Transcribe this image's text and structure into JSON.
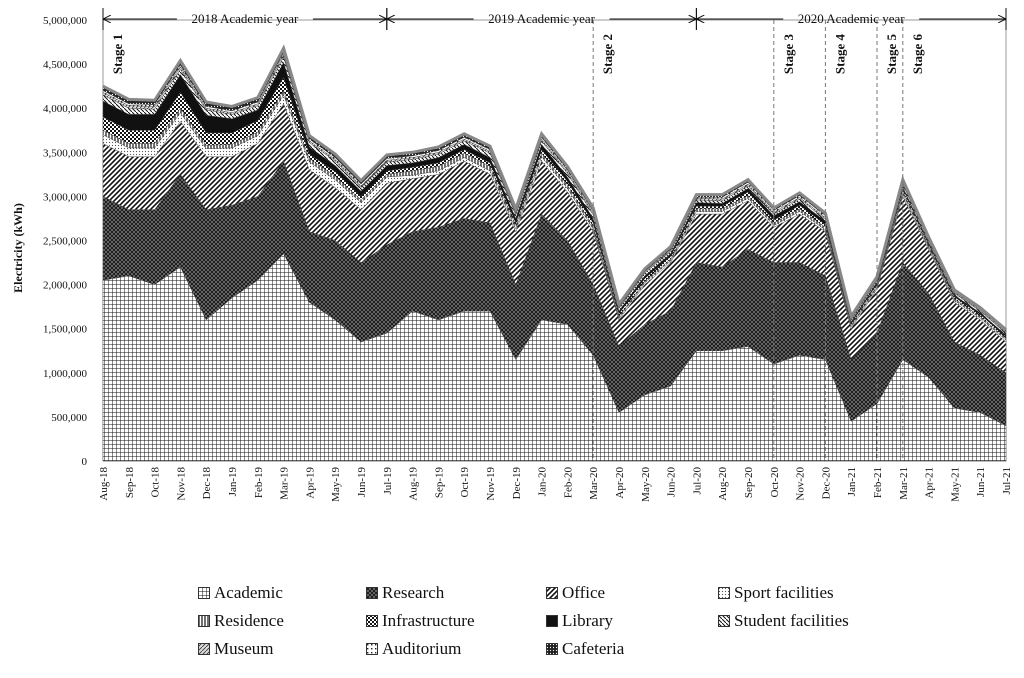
{
  "chart_data": {
    "type": "area",
    "stacked": true,
    "ylabel": "Electricity (kWh)",
    "ylim": [
      0,
      5000000
    ],
    "yticks": [
      "0",
      "500,000",
      "1,000,000",
      "1,500,000",
      "2,000,000",
      "2,500,000",
      "3,000,000",
      "3,500,000",
      "4,000,000",
      "4,500,000",
      "5,000,000"
    ],
    "categories": [
      "Aug-18",
      "Sep-18",
      "Oct-18",
      "Nov-18",
      "Dec-18",
      "Jan-19",
      "Feb-19",
      "Mar-19",
      "Apr-19",
      "May-19",
      "Jun-19",
      "Jul-19",
      "Aug-19",
      "Sep-19",
      "Oct-19",
      "Nov-19",
      "Dec-19",
      "Jan-20",
      "Feb-20",
      "Mar-20",
      "Apr-20",
      "May-20",
      "Jun-20",
      "Jul-20",
      "Aug-20",
      "Sep-20",
      "Oct-20",
      "Nov-20",
      "Dec-20",
      "Jan-21",
      "Feb-21",
      "Mar-21",
      "Apr-21",
      "May-21",
      "Jun-21",
      "Jul-21"
    ],
    "series": [
      {
        "name": "Academic",
        "pattern": "grid",
        "values": [
          2050000,
          2100000,
          2000000,
          2200000,
          1600000,
          1850000,
          2050000,
          2350000,
          1800000,
          1600000,
          1350000,
          1450000,
          1700000,
          1600000,
          1700000,
          1700000,
          1150000,
          1600000,
          1550000,
          1200000,
          550000,
          750000,
          850000,
          1250000,
          1250000,
          1300000,
          1100000,
          1200000,
          1150000,
          450000,
          650000,
          1150000,
          950000,
          600000,
          550000,
          400000
        ]
      },
      {
        "name": "Research",
        "pattern": "crosshatch",
        "values": [
          950000,
          750000,
          850000,
          1050000,
          1250000,
          1050000,
          950000,
          1050000,
          800000,
          900000,
          900000,
          1000000,
          900000,
          1050000,
          1050000,
          1000000,
          850000,
          1200000,
          950000,
          800000,
          750000,
          800000,
          850000,
          1000000,
          950000,
          1100000,
          1150000,
          1050000,
          950000,
          700000,
          800000,
          1100000,
          950000,
          750000,
          650000,
          600000
        ]
      },
      {
        "name": "Office",
        "pattern": "diag",
        "values": [
          600000,
          600000,
          600000,
          600000,
          600000,
          550000,
          600000,
          650000,
          700000,
          600000,
          600000,
          700000,
          600000,
          600000,
          650000,
          550000,
          600000,
          600000,
          550000,
          600000,
          300000,
          450000,
          550000,
          550000,
          600000,
          550000,
          400000,
          550000,
          500000,
          350000,
          500000,
          750000,
          500000,
          450000,
          400000,
          350000
        ]
      },
      {
        "name": "Sport facilities",
        "pattern": "dots",
        "values": [
          100000,
          100000,
          100000,
          100000,
          90000,
          100000,
          90000,
          100000,
          90000,
          90000,
          80000,
          70000,
          40000,
          40000,
          40000,
          40000,
          30000,
          50000,
          40000,
          30000,
          20000,
          20000,
          20000,
          30000,
          30000,
          30000,
          20000,
          30000,
          20000,
          20000,
          20000,
          30000,
          20000,
          20000,
          20000,
          20000
        ]
      },
      {
        "name": "Residence",
        "pattern": "vert",
        "values": [
          50000,
          50000,
          50000,
          50000,
          40000,
          40000,
          40000,
          50000,
          40000,
          40000,
          30000,
          30000,
          50000,
          50000,
          50000,
          50000,
          40000,
          40000,
          40000,
          30000,
          20000,
          20000,
          20000,
          30000,
          30000,
          30000,
          30000,
          30000,
          30000,
          20000,
          20000,
          30000,
          20000,
          20000,
          20000,
          20000
        ]
      },
      {
        "name": "Infrastructure",
        "pattern": "checker",
        "values": [
          150000,
          150000,
          150000,
          180000,
          140000,
          130000,
          130000,
          150000,
          50000,
          50000,
          40000,
          40000,
          40000,
          40000,
          40000,
          40000,
          30000,
          40000,
          40000,
          40000,
          30000,
          30000,
          30000,
          30000,
          30000,
          40000,
          30000,
          40000,
          30000,
          20000,
          20000,
          30000,
          20000,
          20000,
          20000,
          20000
        ]
      },
      {
        "name": "Library",
        "pattern": "solid",
        "values": [
          180000,
          180000,
          180000,
          200000,
          200000,
          160000,
          120000,
          170000,
          80000,
          70000,
          60000,
          60000,
          50000,
          60000,
          60000,
          60000,
          50000,
          60000,
          50000,
          50000,
          30000,
          30000,
          30000,
          40000,
          30000,
          40000,
          50000,
          40000,
          40000,
          20000,
          20000,
          20000,
          20000,
          20000,
          20000,
          20000
        ]
      },
      {
        "name": "Student facilities",
        "pattern": "backdiag",
        "values": [
          70000,
          70000,
          60000,
          60000,
          60000,
          50000,
          50000,
          60000,
          50000,
          50000,
          40000,
          40000,
          40000,
          40000,
          40000,
          50000,
          40000,
          40000,
          40000,
          40000,
          30000,
          30000,
          30000,
          30000,
          30000,
          30000,
          20000,
          30000,
          20000,
          20000,
          20000,
          30000,
          20000,
          20000,
          20000,
          20000
        ]
      },
      {
        "name": "Museum",
        "pattern": "hatch",
        "values": [
          30000,
          30000,
          30000,
          30000,
          20000,
          20000,
          20000,
          30000,
          20000,
          20000,
          20000,
          20000,
          20000,
          20000,
          20000,
          20000,
          20000,
          20000,
          20000,
          20000,
          10000,
          10000,
          10000,
          20000,
          20000,
          20000,
          20000,
          20000,
          20000,
          10000,
          10000,
          10000,
          10000,
          10000,
          10000,
          10000
        ]
      },
      {
        "name": "Auditorium",
        "pattern": "sparse",
        "values": [
          20000,
          20000,
          20000,
          20000,
          20000,
          20000,
          20000,
          20000,
          20000,
          20000,
          20000,
          20000,
          20000,
          20000,
          20000,
          20000,
          10000,
          20000,
          20000,
          20000,
          10000,
          10000,
          10000,
          10000,
          20000,
          20000,
          20000,
          20000,
          20000,
          10000,
          10000,
          10000,
          10000,
          10000,
          10000,
          10000
        ]
      },
      {
        "name": "Cafeteria",
        "pattern": "dense",
        "values": [
          50000,
          50000,
          50000,
          50000,
          50000,
          50000,
          50000,
          50000,
          40000,
          40000,
          40000,
          40000,
          40000,
          40000,
          40000,
          40000,
          40000,
          40000,
          40000,
          40000,
          30000,
          30000,
          30000,
          30000,
          30000,
          30000,
          30000,
          30000,
          30000,
          20000,
          20000,
          30000,
          20000,
          20000,
          20000,
          20000
        ]
      }
    ],
    "academic_years": [
      {
        "label": "2018 Academic year",
        "from": "Aug-18",
        "to": "Jul-19"
      },
      {
        "label": "2019 Academic year",
        "from": "Jul-19",
        "to": "Jul-20"
      },
      {
        "label": "2020 Academic year",
        "from": "Jul-20",
        "to": "Jul-21"
      }
    ],
    "stages": [
      {
        "label": "Stage 1",
        "at": "Aug-18",
        "line": false
      },
      {
        "label": "Stage 2",
        "at": "Mar-20",
        "line": true
      },
      {
        "label": "Stage 3",
        "at": "Oct-20",
        "line": true
      },
      {
        "label": "Stage 4",
        "at": "Dec-20",
        "line": true
      },
      {
        "label": "Stage 5",
        "at": "Feb-21",
        "line": true
      },
      {
        "label": "Stage 6",
        "at": "Mar-21",
        "line": true
      }
    ]
  },
  "legend": [
    [
      "Academic",
      "Research",
      "Office",
      "Sport facilities"
    ],
    [
      "Residence",
      "Infrastructure",
      "Library",
      "Student facilities"
    ],
    [
      "Museum",
      "Auditorium",
      "Cafeteria"
    ]
  ]
}
